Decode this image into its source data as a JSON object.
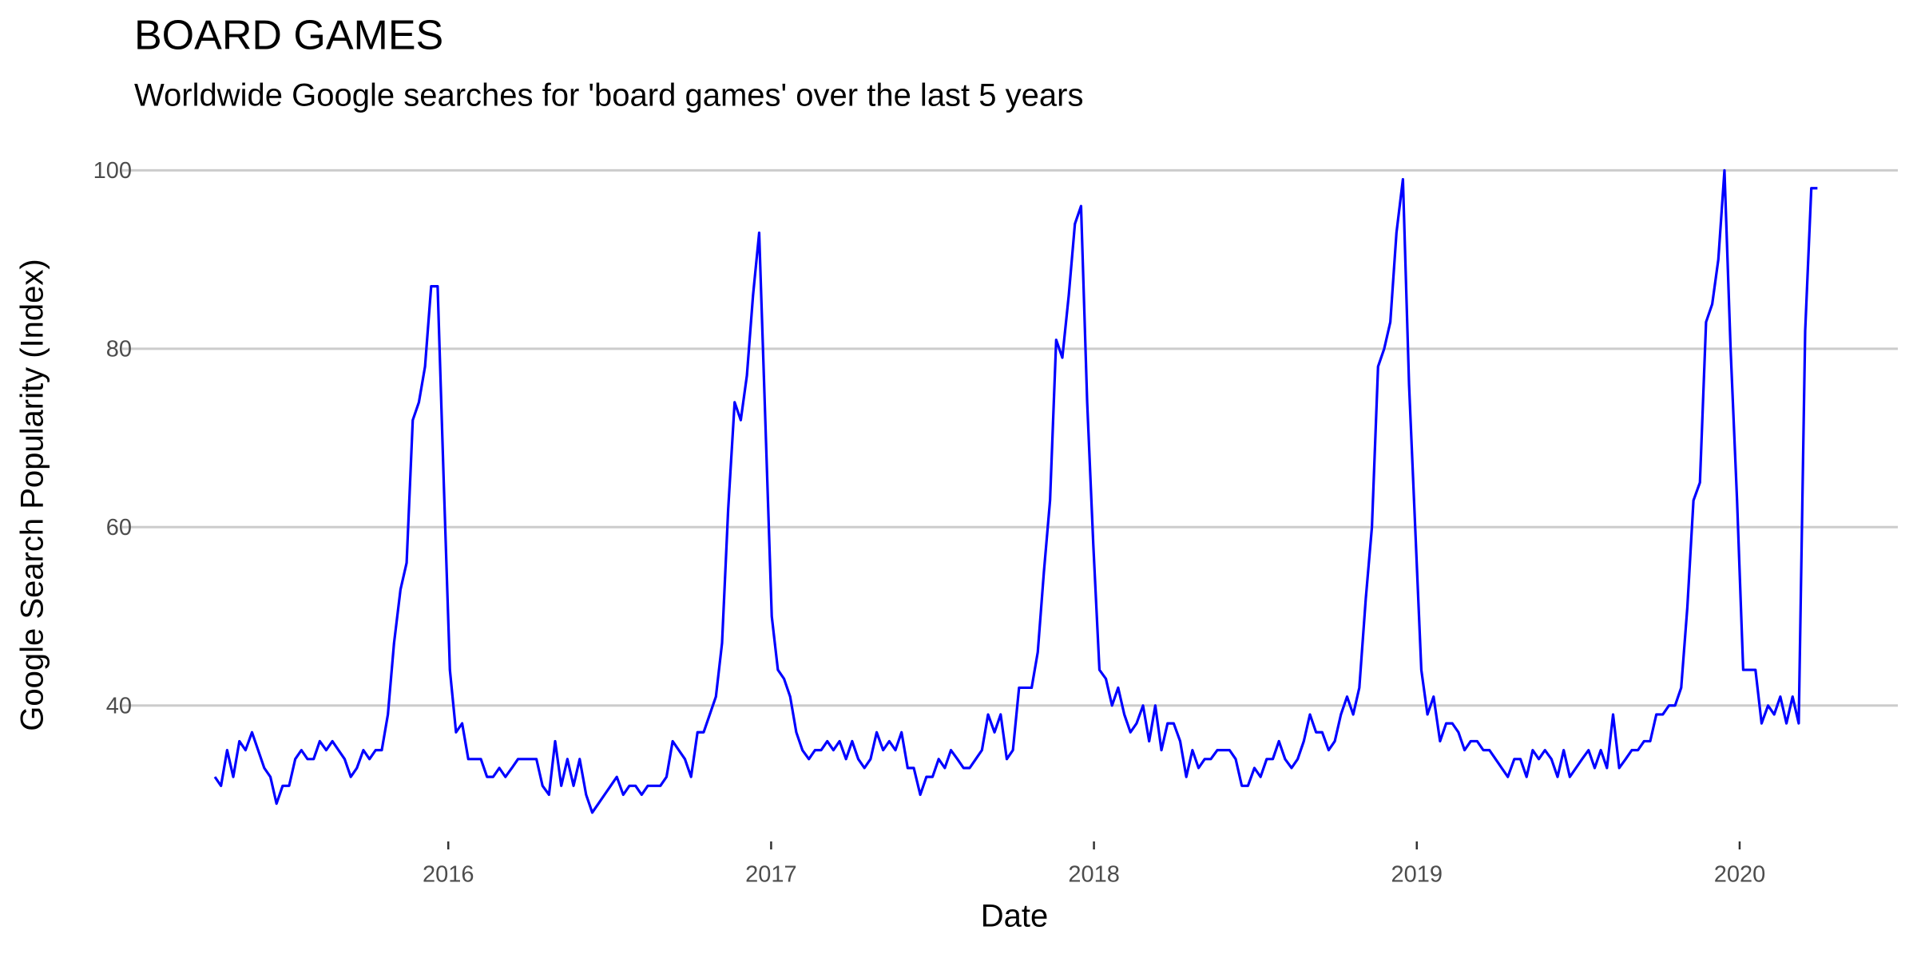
{
  "chart_data": {
    "type": "line",
    "title": "BOARD GAMES",
    "subtitle": "Worldwide Google searches for 'board games' over the last 5 years",
    "x_label": "Date",
    "y_label": "Google Search Popularity (Index)",
    "xlim": [
      2014.99,
      2020.49
    ],
    "xticks": [
      2016,
      2017,
      2018,
      2019,
      2020
    ],
    "ylim": [
      25.3,
      101.2
    ],
    "yticks": [
      40,
      60,
      80,
      100
    ],
    "grid": true,
    "x": [
      2015.277,
      2015.296,
      2015.315,
      2015.334,
      2015.353,
      2015.372,
      2015.392,
      2015.411,
      2015.43,
      2015.449,
      2015.468,
      2015.487,
      2015.507,
      2015.526,
      2015.545,
      2015.564,
      2015.583,
      2015.602,
      2015.622,
      2015.641,
      2015.66,
      2015.679,
      2015.698,
      2015.717,
      2015.737,
      2015.756,
      2015.775,
      2015.794,
      2015.813,
      2015.832,
      2015.852,
      2015.871,
      2015.89,
      2015.909,
      2015.928,
      2015.947,
      2015.967,
      2015.986,
      2016.005,
      2016.024,
      2016.043,
      2016.062,
      2016.082,
      2016.101,
      2016.12,
      2016.139,
      2016.158,
      2016.177,
      2016.197,
      2016.216,
      2016.235,
      2016.254,
      2016.273,
      2016.292,
      2016.312,
      2016.331,
      2016.35,
      2016.369,
      2016.388,
      2016.407,
      2016.427,
      2016.446,
      2016.465,
      2016.484,
      2016.503,
      2016.522,
      2016.542,
      2016.561,
      2016.58,
      2016.599,
      2016.618,
      2016.637,
      2016.657,
      2016.676,
      2016.695,
      2016.714,
      2016.733,
      2016.752,
      2016.772,
      2016.791,
      2016.81,
      2016.829,
      2016.848,
      2016.867,
      2016.887,
      2016.906,
      2016.925,
      2016.944,
      2016.963,
      2016.982,
      2017.002,
      2017.021,
      2017.04,
      2017.059,
      2017.078,
      2017.097,
      2017.117,
      2017.136,
      2017.155,
      2017.174,
      2017.193,
      2017.212,
      2017.232,
      2017.251,
      2017.27,
      2017.289,
      2017.308,
      2017.327,
      2017.347,
      2017.366,
      2017.385,
      2017.404,
      2017.423,
      2017.442,
      2017.462,
      2017.481,
      2017.5,
      2017.519,
      2017.538,
      2017.557,
      2017.577,
      2017.596,
      2017.615,
      2017.634,
      2017.653,
      2017.672,
      2017.692,
      2017.711,
      2017.73,
      2017.749,
      2017.768,
      2017.787,
      2017.807,
      2017.826,
      2017.845,
      2017.864,
      2017.883,
      2017.902,
      2017.922,
      2017.941,
      2017.96,
      2017.979,
      2017.998,
      2018.017,
      2018.037,
      2018.056,
      2018.075,
      2018.094,
      2018.113,
      2018.132,
      2018.152,
      2018.171,
      2018.19,
      2018.209,
      2018.228,
      2018.247,
      2018.267,
      2018.286,
      2018.305,
      2018.324,
      2018.343,
      2018.362,
      2018.382,
      2018.401,
      2018.42,
      2018.439,
      2018.458,
      2018.477,
      2018.497,
      2018.516,
      2018.535,
      2018.554,
      2018.573,
      2018.592,
      2018.612,
      2018.631,
      2018.65,
      2018.669,
      2018.688,
      2018.707,
      2018.727,
      2018.746,
      2018.765,
      2018.784,
      2018.803,
      2018.822,
      2018.842,
      2018.861,
      2018.88,
      2018.899,
      2018.918,
      2018.937,
      2018.957,
      2018.976,
      2018.995,
      2019.014,
      2019.033,
      2019.052,
      2019.072,
      2019.091,
      2019.11,
      2019.129,
      2019.148,
      2019.167,
      2019.187,
      2019.206,
      2019.225,
      2019.244,
      2019.263,
      2019.282,
      2019.302,
      2019.321,
      2019.34,
      2019.359,
      2019.378,
      2019.397,
      2019.417,
      2019.436,
      2019.455,
      2019.474,
      2019.493,
      2019.512,
      2019.532,
      2019.551,
      2019.57,
      2019.589,
      2019.608,
      2019.627,
      2019.647,
      2019.666,
      2019.685,
      2019.704,
      2019.723,
      2019.742,
      2019.762,
      2019.781,
      2019.8,
      2019.819,
      2019.838,
      2019.857,
      2019.877,
      2019.896,
      2019.915,
      2019.934,
      2019.953,
      2019.972,
      2019.992,
      2020.011,
      2020.03,
      2020.049,
      2020.068,
      2020.088,
      2020.107,
      2020.126,
      2020.145,
      2020.164,
      2020.183,
      2020.203,
      2020.222,
      2020.241
    ],
    "series": [
      {
        "color": "#0000ff",
        "values": [
          32,
          31,
          35,
          32,
          36,
          35,
          37,
          35,
          33,
          32,
          29,
          31,
          31,
          34,
          35,
          34,
          34,
          36,
          35,
          36,
          35,
          34,
          32,
          33,
          35,
          34,
          35,
          35,
          39,
          47,
          53,
          56,
          72,
          74,
          78,
          87,
          87,
          65,
          44,
          37,
          38,
          34,
          34,
          34,
          32,
          32,
          33,
          32,
          33,
          34,
          34,
          34,
          34,
          31,
          30,
          36,
          31,
          34,
          31,
          34,
          30,
          28,
          29,
          30,
          31,
          32,
          30,
          31,
          31,
          30,
          31,
          31,
          31,
          32,
          36,
          35,
          34,
          32,
          37,
          37,
          39,
          41,
          47,
          62,
          74,
          72,
          77,
          86,
          93,
          72,
          50,
          44,
          43,
          41,
          37,
          35,
          34,
          35,
          35,
          36,
          35,
          36,
          34,
          36,
          34,
          33,
          34,
          37,
          35,
          36,
          35,
          37,
          33,
          33,
          30,
          32,
          32,
          34,
          33,
          35,
          34,
          33,
          33,
          34,
          35,
          39,
          37,
          39,
          34,
          35,
          42,
          42,
          42,
          46,
          55,
          63,
          81,
          79,
          86,
          94,
          96,
          74,
          58,
          44,
          43,
          40,
          42,
          39,
          37,
          38,
          40,
          36,
          40,
          35,
          38,
          38,
          36,
          32,
          35,
          33,
          34,
          34,
          35,
          35,
          35,
          34,
          31,
          31,
          33,
          32,
          34,
          34,
          36,
          34,
          33,
          34,
          36,
          39,
          37,
          37,
          35,
          36,
          39,
          41,
          39,
          42,
          52,
          60,
          78,
          80,
          83,
          93,
          99,
          76,
          60,
          44,
          39,
          41,
          36,
          38,
          38,
          37,
          35,
          36,
          36,
          35,
          35,
          34,
          33,
          32,
          34,
          34,
          32,
          35,
          34,
          35,
          34,
          32,
          35,
          32,
          33,
          34,
          35,
          33,
          35,
          33,
          39,
          33,
          34,
          35,
          35,
          36,
          36,
          39,
          39,
          40,
          40,
          42,
          51,
          63,
          65,
          83,
          85,
          90,
          100,
          80,
          63,
          44,
          44,
          44,
          38,
          40,
          39,
          41,
          38,
          41,
          38,
          82,
          98,
          98
        ]
      }
    ]
  }
}
